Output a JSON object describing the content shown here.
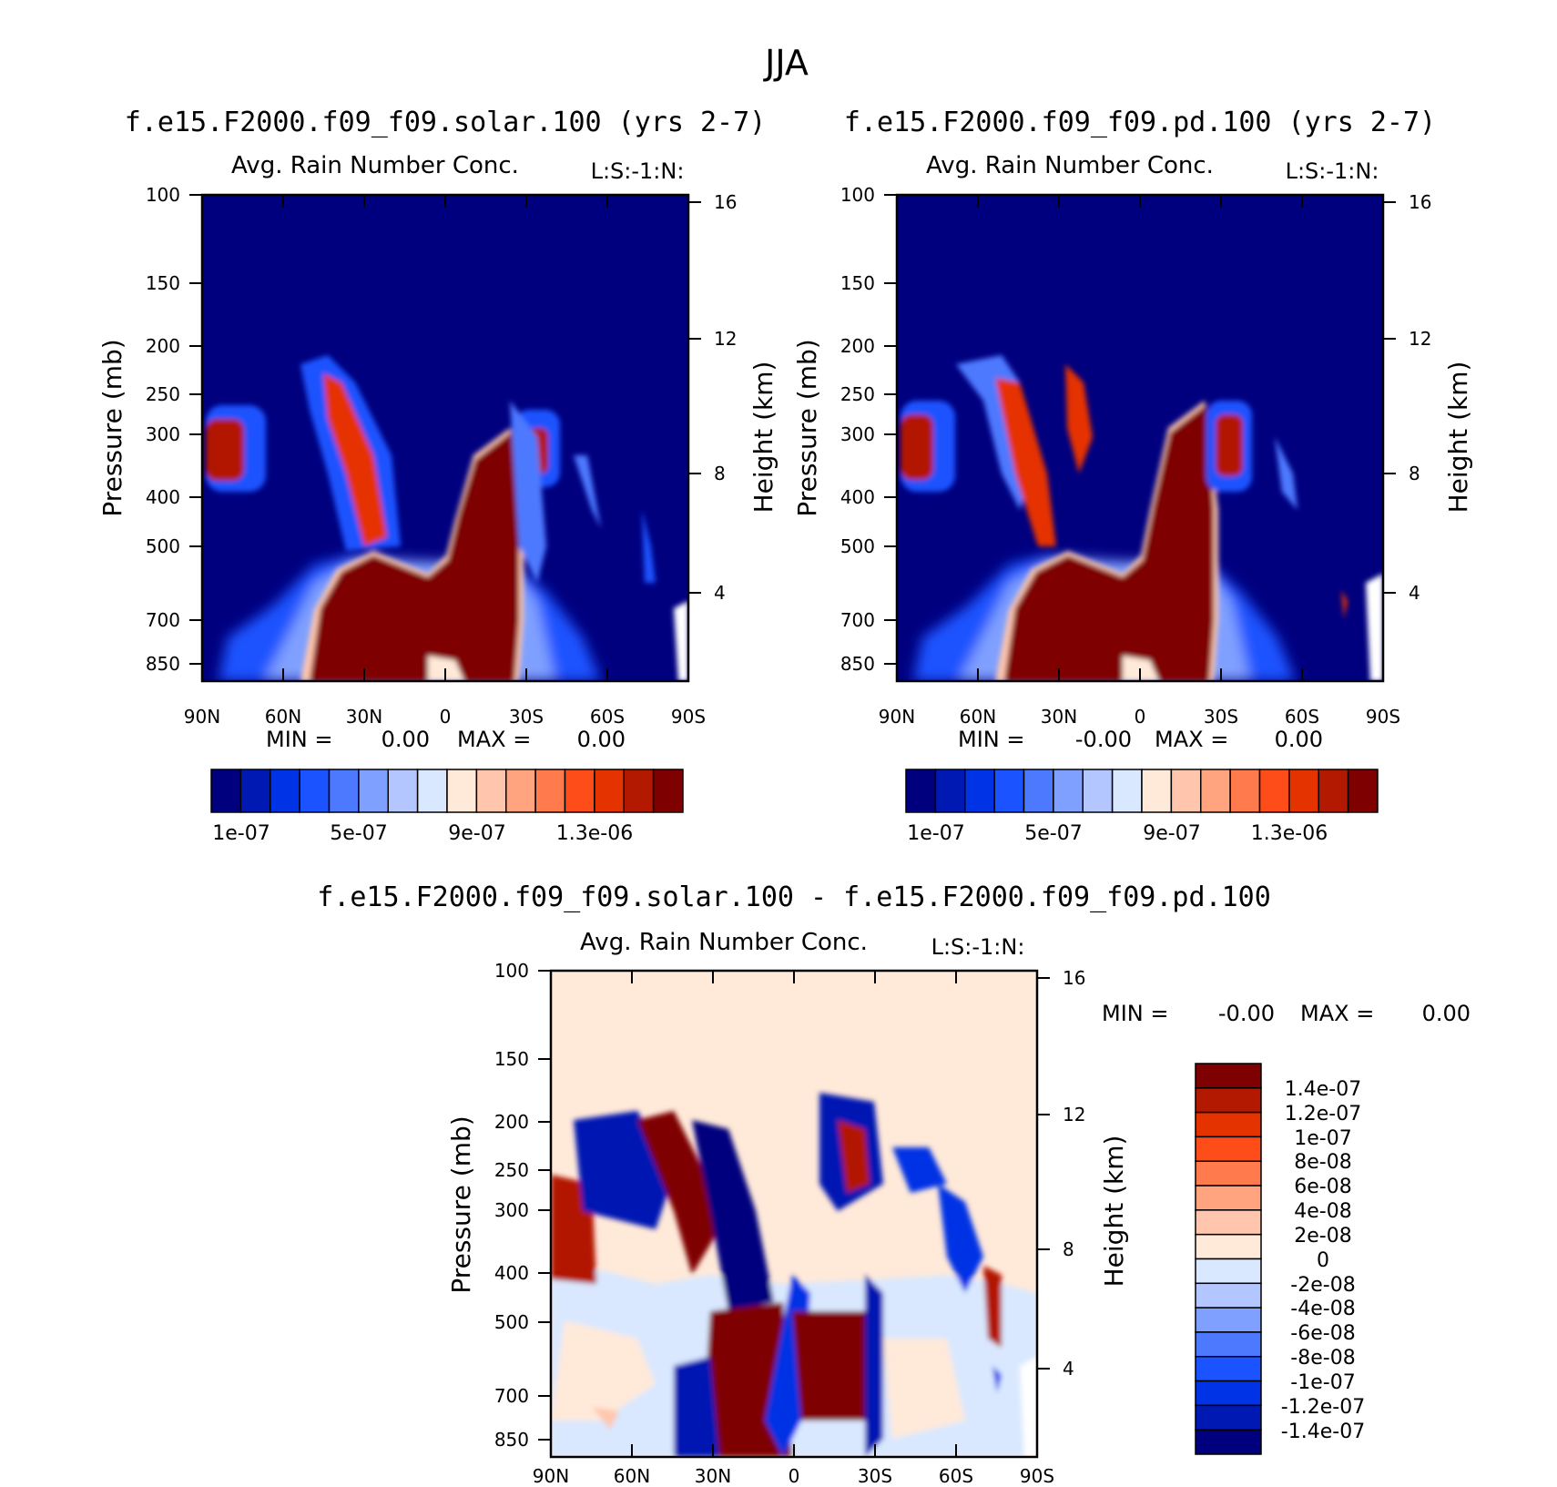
{
  "page_title": "JJA",
  "colors": {
    "seq": [
      "#00007f",
      "#0019b2",
      "#0033e5",
      "#1a53ff",
      "#4d79ff",
      "#80a0ff",
      "#b3c6ff",
      "#d9e8ff",
      "#ffe9d9",
      "#ffc6ad",
      "#ffa47f",
      "#ff7a4d",
      "#ff4d1a",
      "#e53300",
      "#b21900",
      "#7f0000"
    ],
    "diff": [
      "#00007f",
      "#0019b2",
      "#0033e5",
      "#1a53ff",
      "#4d79ff",
      "#80a0ff",
      "#b3c6ff",
      "#d9e8ff",
      "#ffe9d9",
      "#ffc6ad",
      "#ffa47f",
      "#ff7a4d",
      "#ff4d1a",
      "#e53300",
      "#b21900",
      "#7f0000"
    ]
  },
  "chart_data": [
    {
      "type": "heatmap",
      "case_title": "f.e15.F2000.f09_f09.solar.100 (yrs 2-7)",
      "title": "Avg. Rain Number Conc.",
      "level_tag": "L:S:-1:N:",
      "xlabel": "",
      "ylabel": "Pressure (mb)",
      "ylabel_right": "Height (km)",
      "xticks": [
        "90N",
        "60N",
        "30N",
        "0",
        "30S",
        "60S",
        "90S"
      ],
      "yticks": [
        "100",
        "150",
        "200",
        "250",
        "300",
        "400",
        "500",
        "700",
        "850"
      ],
      "height_ticks": [
        "16",
        "12",
        "8",
        "4"
      ],
      "ylim": [
        100,
        925
      ],
      "stats_min_label": "MIN =",
      "stats_min": "0.00",
      "stats_max_label": "MAX =",
      "stats_max": "0.00",
      "colorbar_labels": [
        "1e-07",
        "5e-07",
        "9e-07",
        "1.3e-06"
      ],
      "levels": [
        1e-07,
        2e-07,
        3e-07,
        4e-07,
        5e-07,
        6e-07,
        7e-07,
        8e-07,
        9e-07,
        1e-06,
        1.1e-06,
        1.2e-06,
        1.3e-06,
        1.4e-06,
        1.5e-06
      ]
    },
    {
      "type": "heatmap",
      "case_title": "f.e15.F2000.f09_f09.pd.100 (yrs 2-7)",
      "title": "Avg. Rain Number Conc.",
      "level_tag": "L:S:-1:N:",
      "xlabel": "",
      "ylabel": "Pressure (mb)",
      "ylabel_right": "Height (km)",
      "xticks": [
        "90N",
        "60N",
        "30N",
        "0",
        "30S",
        "60S",
        "90S"
      ],
      "yticks": [
        "100",
        "150",
        "200",
        "250",
        "300",
        "400",
        "500",
        "700",
        "850"
      ],
      "height_ticks": [
        "16",
        "12",
        "8",
        "4"
      ],
      "ylim": [
        100,
        925
      ],
      "stats_min_label": "MIN =",
      "stats_min": "-0.00",
      "stats_max_label": "MAX =",
      "stats_max": "0.00",
      "colorbar_labels": [
        "1e-07",
        "5e-07",
        "9e-07",
        "1.3e-06"
      ],
      "levels": [
        1e-07,
        2e-07,
        3e-07,
        4e-07,
        5e-07,
        6e-07,
        7e-07,
        8e-07,
        9e-07,
        1e-06,
        1.1e-06,
        1.2e-06,
        1.3e-06,
        1.4e-06,
        1.5e-06
      ]
    },
    {
      "type": "heatmap",
      "case_title": "f.e15.F2000.f09_f09.solar.100 - f.e15.F2000.f09_f09.pd.100",
      "title": "Avg. Rain Number Conc.",
      "level_tag": "L:S:-1:N:",
      "xlabel": "",
      "ylabel": "Pressure (mb)",
      "ylabel_right": "Height (km)",
      "xticks": [
        "90N",
        "60N",
        "30N",
        "0",
        "30S",
        "60S",
        "90S"
      ],
      "yticks": [
        "100",
        "150",
        "200",
        "250",
        "300",
        "400",
        "500",
        "700",
        "850"
      ],
      "height_ticks": [
        "16",
        "12",
        "8",
        "4"
      ],
      "ylim": [
        100,
        925
      ],
      "stats_min_label": "MIN =",
      "stats_min": "-0.00",
      "stats_max_label": "MAX =",
      "stats_max": "0.00",
      "colorbar_labels": [
        "1.4e-07",
        "1.2e-07",
        "1e-07",
        "8e-08",
        "6e-08",
        "4e-08",
        "2e-08",
        "0",
        "-2e-08",
        "-4e-08",
        "-6e-08",
        "-8e-08",
        "-1e-07",
        "-1.2e-07",
        "-1.4e-07"
      ],
      "levels": [
        1.4e-07,
        1.2e-07,
        1e-07,
        8e-08,
        6e-08,
        4e-08,
        2e-08,
        0,
        -2e-08,
        -4e-08,
        -6e-08,
        -8e-08,
        -1e-07,
        -1.2e-07,
        -1.4e-07
      ]
    }
  ]
}
